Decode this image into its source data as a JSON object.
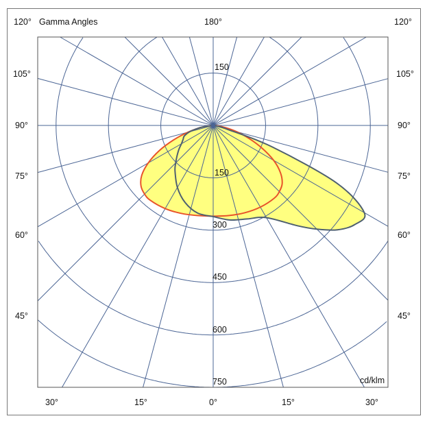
{
  "chart_data": {
    "type": "polar",
    "title": "Gamma Angles",
    "unit": "cd/klm",
    "radial_ticks": [
      "150",
      "300",
      "450",
      "600",
      "750"
    ],
    "radial_range": [
      0,
      750
    ],
    "angle_step_deg": 15,
    "angle_labels": {
      "top": "180°",
      "top_left": "120°",
      "top_right": "120°",
      "sides": [
        "105°",
        "90°",
        "75°",
        "60°",
        "45°"
      ],
      "bottom": [
        "30°",
        "15°",
        "0°",
        "15°",
        "30°"
      ]
    },
    "gamma": [
      0,
      10,
      20,
      30,
      40,
      45,
      50,
      55,
      60,
      65,
      70,
      75,
      80,
      85,
      90
    ],
    "series": [
      {
        "color": "#e8532a",
        "left": [
          260,
          262,
          268,
          275,
          280,
          278,
          270,
          250,
          215,
          170,
          120,
          75,
          40,
          15,
          0
        ],
        "right": [
          260,
          262,
          266,
          270,
          272,
          268,
          258,
          235,
          200,
          155,
          110,
          70,
          35,
          12,
          0
        ]
      },
      {
        "color": "#4f6070",
        "left": [
          261,
          255,
          235,
          205,
          170,
          152,
          135,
          120,
          105,
          95,
          88,
          70,
          40,
          15,
          0
        ],
        "right": [
          261,
          275,
          285,
          305,
          375,
          420,
          465,
          495,
          500,
          390,
          180,
          40,
          15,
          5,
          0
        ]
      }
    ],
    "fill_color": "#ffff80",
    "grid_color": "#4a6494",
    "grid": true
  }
}
